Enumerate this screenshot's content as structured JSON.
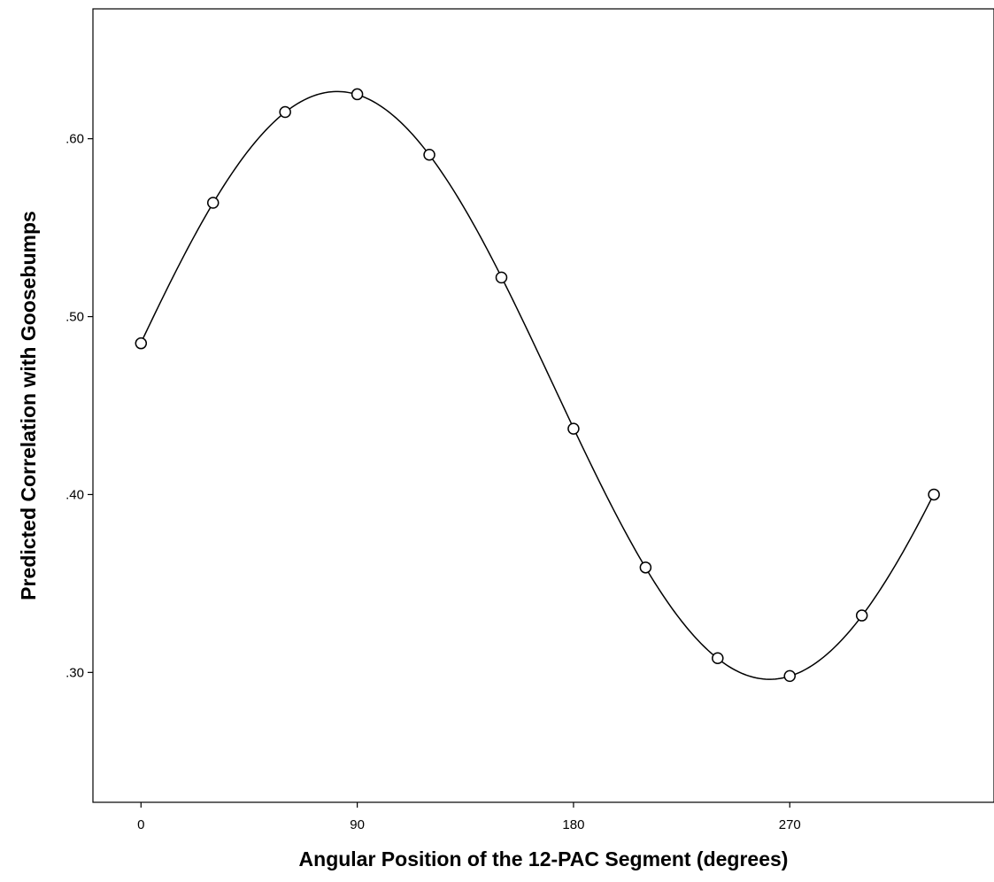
{
  "chart_data": {
    "type": "line",
    "title": "",
    "xlabel": "Angular Position of the 12-PAC Segment (degrees)",
    "ylabel": "Predicted Correlation with Goosebumps",
    "xlim": [
      -20,
      355
    ],
    "ylim": [
      0.227,
      0.673
    ],
    "x_ticks": [
      0,
      90,
      180,
      270
    ],
    "x_tick_labels": [
      "0",
      "90",
      "180",
      "270"
    ],
    "y_ticks": [
      0.3,
      0.4,
      0.5,
      0.6
    ],
    "y_tick_labels": [
      ".30",
      ".40",
      ".50",
      ".60"
    ],
    "grid": false,
    "legend": "none",
    "series": [
      {
        "marker": "open-circle",
        "x": [
          0,
          30,
          60,
          90,
          120,
          150,
          180,
          210,
          240,
          270,
          300,
          330
        ],
        "y": [
          0.485,
          0.564,
          0.615,
          0.625,
          0.591,
          0.522,
          0.437,
          0.359,
          0.308,
          0.298,
          0.332,
          0.4
        ]
      }
    ],
    "fit_curve": {
      "type": "sinusoid",
      "color": "#000000"
    },
    "colors": {
      "line": "#000000",
      "marker": "#000000",
      "background": "#ffffff"
    }
  }
}
